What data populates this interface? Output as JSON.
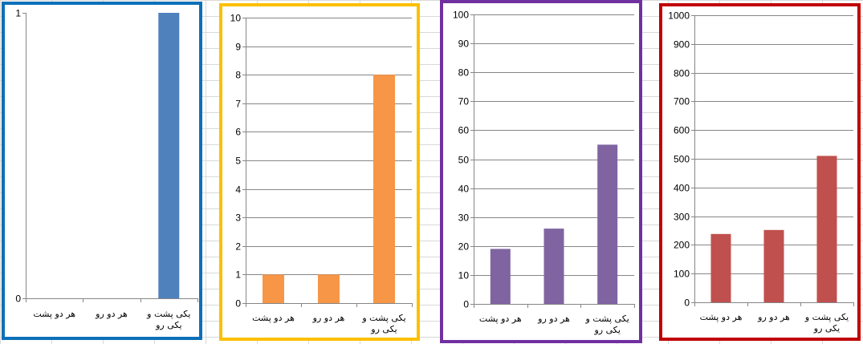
{
  "charts": [
    {
      "name": "chart-1",
      "border_color": "#0b70b9",
      "bar_color": "#4f81bd",
      "chart_data": {
        "type": "bar",
        "categories": [
          "هر دو پشت",
          "هر دو رو",
          "یکی پشت و یکی رو"
        ],
        "category_lines": [
          [
            "هر دو پشت"
          ],
          [
            "هر دو رو"
          ],
          [
            "یکی پشت و",
            "یکی رو"
          ]
        ],
        "values": [
          0,
          0,
          1
        ],
        "ylim": [
          0,
          1
        ],
        "yticks": [
          0,
          1
        ],
        "grid": true,
        "title": "",
        "xlabel": "",
        "ylabel": ""
      }
    },
    {
      "name": "chart-2",
      "border_color": "#fbc000",
      "bar_color": "#f79646",
      "chart_data": {
        "type": "bar",
        "categories": [
          "هر دو پشت",
          "هر دو رو",
          "یکی پشت و یکی رو"
        ],
        "category_lines": [
          [
            "هر دو پشت"
          ],
          [
            "هر دو رو"
          ],
          [
            "یکی پشت و",
            "یکی رو"
          ]
        ],
        "values": [
          1,
          1,
          8
        ],
        "ylim": [
          0,
          10
        ],
        "yticks": [
          0,
          1,
          2,
          3,
          4,
          5,
          6,
          7,
          8,
          9,
          10
        ],
        "grid": true,
        "title": "",
        "xlabel": "",
        "ylabel": ""
      }
    },
    {
      "name": "chart-3",
      "border_color": "#7030a0",
      "bar_color": "#8064a2",
      "chart_data": {
        "type": "bar",
        "categories": [
          "هر دو پشت",
          "هر دو رو",
          "یکی پشت و یکی رو"
        ],
        "category_lines": [
          [
            "هر دو پشت"
          ],
          [
            "هر دو رو"
          ],
          [
            "یکی پشت و",
            "یکی رو"
          ]
        ],
        "values": [
          19,
          26,
          55
        ],
        "ylim": [
          0,
          100
        ],
        "yticks": [
          0,
          10,
          20,
          30,
          40,
          50,
          60,
          70,
          80,
          90,
          100
        ],
        "grid": true,
        "title": "",
        "xlabel": "",
        "ylabel": ""
      }
    },
    {
      "name": "chart-4",
      "border_color": "#c00000",
      "bar_color": "#c0504d",
      "chart_data": {
        "type": "bar",
        "categories": [
          "هر دو پشت",
          "هر دو رو",
          "یکی پشت و یکی رو"
        ],
        "category_lines": [
          [
            "هر دو پشت"
          ],
          [
            "هر دو رو"
          ],
          [
            "یکی پشت و",
            "یکی رو"
          ]
        ],
        "values": [
          238,
          252,
          510
        ],
        "ylim": [
          0,
          1000
        ],
        "yticks": [
          0,
          100,
          200,
          300,
          400,
          500,
          600,
          700,
          800,
          900,
          1000
        ],
        "grid": true,
        "title": "",
        "xlabel": "",
        "ylabel": ""
      }
    }
  ]
}
